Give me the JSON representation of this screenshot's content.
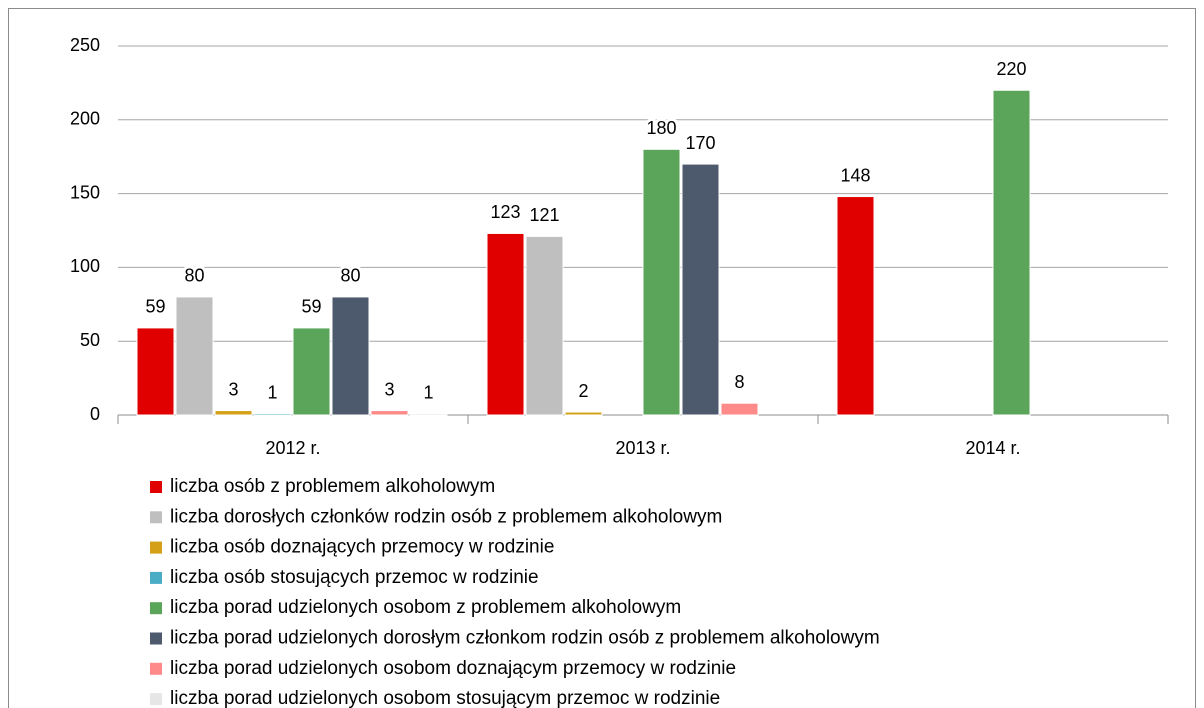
{
  "chart_data": {
    "type": "bar",
    "categories": [
      "2012 r.",
      "2013 r.",
      "2014 r."
    ],
    "series": [
      {
        "name": "liczba osób z problemem alkoholowym",
        "color": "#e00000",
        "values": [
          59,
          123,
          148
        ]
      },
      {
        "name": "liczba dorosłych członków rodzin osób z problemem alkoholowym",
        "color": "#bfbfbf",
        "values": [
          80,
          121,
          null
        ]
      },
      {
        "name": "liczba osób doznających przemocy w rodzinie",
        "color": "#d4a017",
        "values": [
          3,
          2,
          null
        ]
      },
      {
        "name": "liczba osób stosujących przemoc w rodzinie",
        "color": "#4bacc6",
        "values": [
          1,
          null,
          null
        ]
      },
      {
        "name": "liczba porad udzielonych osobom z problemem alkoholowym",
        "color": "#5aa55a",
        "values": [
          59,
          180,
          220
        ]
      },
      {
        "name": "liczba porad udzielonych dorosłym członkom rodzin osób z problemem alkoholowym",
        "color": "#4d5a6e",
        "values": [
          80,
          170,
          null
        ]
      },
      {
        "name": "liczba porad udzielonych osobom doznającym przemocy w rodzinie",
        "color": "#ff8a8a",
        "values": [
          3,
          8,
          null
        ]
      },
      {
        "name": "liczba porad udzielonych osobom stosującym przemoc w rodzinie",
        "color": "#e6e6e6",
        "values": [
          1,
          null,
          null
        ]
      }
    ],
    "ylim": [
      0,
      250
    ],
    "yticks": [
      0,
      50,
      100,
      150,
      200,
      250
    ],
    "grid": true,
    "legend": "bottom"
  }
}
